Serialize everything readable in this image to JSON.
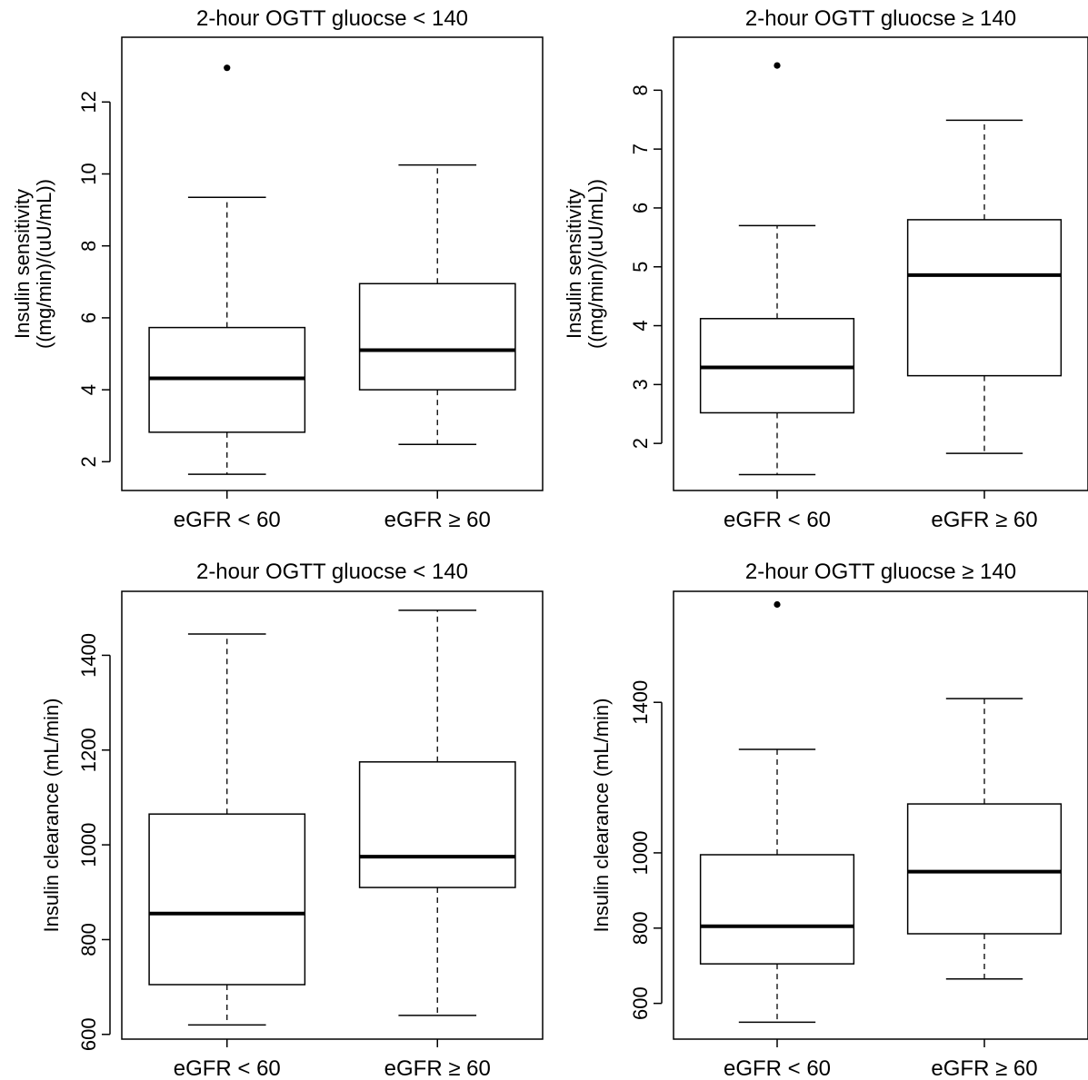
{
  "chart_data": [
    {
      "type": "box",
      "title": "2-hour OGTT gluocse < 140",
      "ylabel_lines": [
        "Insulin sensitivity",
        "((mg/min)/(uU/mL))"
      ],
      "xlabel": "",
      "categories": [
        "eGFR < 60",
        "eGFR ≥ 60"
      ],
      "ylim": [
        1.2,
        13.8
      ],
      "yticks": [
        2,
        4,
        6,
        8,
        10,
        12
      ],
      "boxes": [
        {
          "whisker_low": 1.65,
          "q1": 2.82,
          "median": 4.32,
          "q3": 5.73,
          "whisker_high": 9.35,
          "outliers": [
            12.95
          ]
        },
        {
          "whisker_low": 2.48,
          "q1": 4.0,
          "median": 5.1,
          "q3": 6.95,
          "whisker_high": 10.25,
          "outliers": []
        }
      ],
      "grid": false
    },
    {
      "type": "box",
      "title": "2-hour OGTT gluocse ≥ 140",
      "ylabel_lines": [
        "Insulin sensitivity",
        "((mg/min)/(uU/mL))"
      ],
      "xlabel": "",
      "categories": [
        "eGFR < 60",
        "eGFR ≥ 60"
      ],
      "ylim": [
        1.2,
        8.9
      ],
      "yticks": [
        2,
        3,
        4,
        5,
        6,
        7,
        8
      ],
      "boxes": [
        {
          "whisker_low": 1.47,
          "q1": 2.52,
          "median": 3.29,
          "q3": 4.12,
          "whisker_high": 5.7,
          "outliers": [
            8.42
          ]
        },
        {
          "whisker_low": 1.83,
          "q1": 3.15,
          "median": 4.86,
          "q3": 5.8,
          "whisker_high": 7.49,
          "outliers": []
        }
      ],
      "grid": false
    },
    {
      "type": "box",
      "title": "2-hour OGTT gluocse < 140",
      "ylabel_lines": [
        "Insulin clearance (mL/min)"
      ],
      "xlabel": "",
      "categories": [
        "eGFR < 60",
        "eGFR ≥ 60"
      ],
      "ylim": [
        590,
        1535
      ],
      "yticks": [
        600,
        800,
        1000,
        1200,
        1400
      ],
      "boxes": [
        {
          "whisker_low": 620,
          "q1": 705,
          "median": 855,
          "q3": 1065,
          "whisker_high": 1445,
          "outliers": []
        },
        {
          "whisker_low": 640,
          "q1": 910,
          "median": 975,
          "q3": 1175,
          "whisker_high": 1495,
          "outliers": []
        }
      ],
      "grid": false
    },
    {
      "type": "box",
      "title": "2-hour OGTT gluocse ≥ 140",
      "ylabel_lines": [
        "Insulin clearance (mL/min)"
      ],
      "xlabel": "",
      "categories": [
        "eGFR < 60",
        "eGFR ≥ 60"
      ],
      "ylim": [
        505,
        1695
      ],
      "yticks": [
        600,
        800,
        1000,
        1400
      ],
      "boxes": [
        {
          "whisker_low": 550,
          "q1": 705,
          "median": 805,
          "q3": 995,
          "whisker_high": 1275,
          "outliers": [
            1660
          ]
        },
        {
          "whisker_low": 665,
          "q1": 785,
          "median": 950,
          "q3": 1130,
          "whisker_high": 1410,
          "outliers": []
        }
      ],
      "grid": false
    }
  ]
}
